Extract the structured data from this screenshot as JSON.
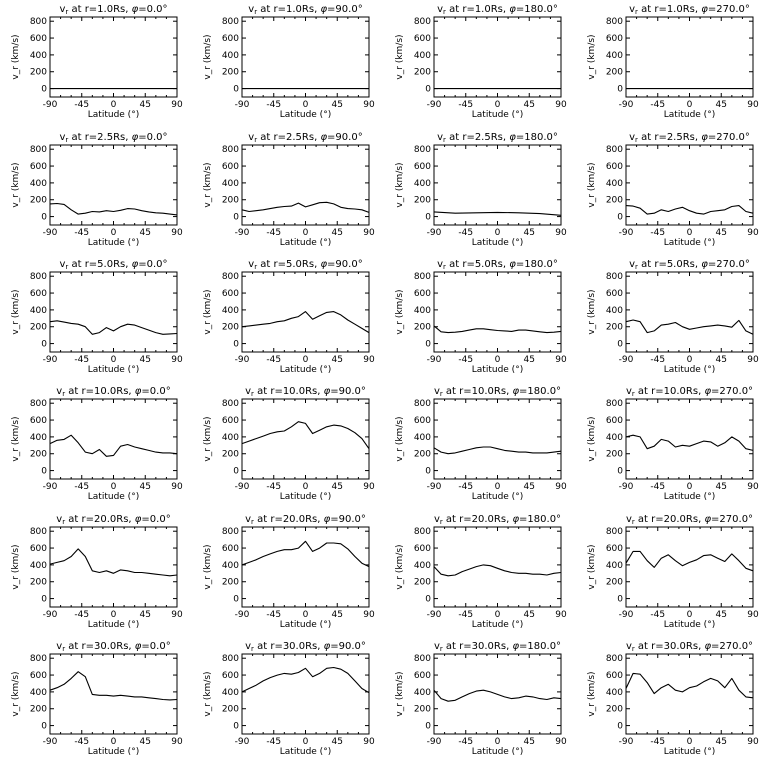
{
  "figure": {
    "ylabel": "v_r (km/s)",
    "xlabel": "Latitude (°)",
    "x_ticks": [
      "-90",
      "-45",
      "0",
      "45",
      "90"
    ],
    "y_ticks": [
      "0",
      "200",
      "400",
      "600",
      "800"
    ]
  },
  "chart_data": [
    {
      "type": "line",
      "title": "v_r at r=1.0Rs, φ=0.0°",
      "radius": "1.0",
      "phi": "0.0",
      "xlabel": "Latitude (°)",
      "ylabel": "v_r (km/s)",
      "xlim": [
        -90,
        90
      ],
      "ylim": [
        -100,
        850
      ],
      "x": [
        -90,
        90
      ],
      "y": [
        0,
        0
      ]
    },
    {
      "type": "line",
      "title": "v_r at r=1.0Rs, φ=90.0°",
      "radius": "1.0",
      "phi": "90.0",
      "xlabel": "Latitude (°)",
      "ylabel": "v_r (km/s)",
      "xlim": [
        -90,
        90
      ],
      "ylim": [
        -100,
        850
      ],
      "x": [
        -90,
        90
      ],
      "y": [
        0,
        0
      ]
    },
    {
      "type": "line",
      "title": "v_r at r=1.0Rs, φ=180.0°",
      "radius": "1.0",
      "phi": "180.0",
      "xlabel": "Latitude (°)",
      "ylabel": "v_r (km/s)",
      "xlim": [
        -90,
        90
      ],
      "ylim": [
        -100,
        850
      ],
      "x": [
        -90,
        90
      ],
      "y": [
        0,
        0
      ]
    },
    {
      "type": "line",
      "title": "v_r at r=1.0Rs, φ=270.0°",
      "radius": "1.0",
      "phi": "270.0",
      "xlabel": "Latitude (°)",
      "ylabel": "v_r (km/s)",
      "xlim": [
        -90,
        90
      ],
      "ylim": [
        -100,
        850
      ],
      "x": [
        -90,
        90
      ],
      "y": [
        0,
        0
      ]
    },
    {
      "type": "line",
      "title": "v_r at r=2.5Rs, φ=0.0°",
      "radius": "2.5",
      "phi": "0.0",
      "xlabel": "Latitude (°)",
      "ylabel": "v_r (km/s)",
      "xlim": [
        -90,
        90
      ],
      "ylim": [
        -100,
        850
      ],
      "x": [
        -90,
        -80,
        -70,
        -60,
        -50,
        -40,
        -30,
        -20,
        -10,
        0,
        10,
        20,
        30,
        40,
        50,
        60,
        70,
        80,
        90
      ],
      "y": [
        150,
        155,
        145,
        80,
        30,
        40,
        60,
        55,
        70,
        60,
        75,
        95,
        90,
        70,
        55,
        45,
        40,
        30,
        20
      ]
    },
    {
      "type": "line",
      "title": "v_r at r=2.5Rs, φ=90.0°",
      "radius": "2.5",
      "phi": "90.0",
      "xlabel": "Latitude (°)",
      "ylabel": "v_r (km/s)",
      "xlim": [
        -90,
        90
      ],
      "ylim": [
        -100,
        850
      ],
      "x": [
        -90,
        -80,
        -70,
        -60,
        -50,
        -40,
        -30,
        -20,
        -10,
        0,
        10,
        20,
        30,
        40,
        50,
        60,
        70,
        80,
        90
      ],
      "y": [
        80,
        60,
        70,
        80,
        95,
        110,
        120,
        125,
        160,
        115,
        140,
        165,
        170,
        150,
        110,
        95,
        90,
        80,
        50
      ]
    },
    {
      "type": "line",
      "title": "v_r at r=2.5Rs, φ=180.0°",
      "radius": "2.5",
      "phi": "180.0",
      "xlabel": "Latitude (°)",
      "ylabel": "v_r (km/s)",
      "xlim": [
        -90,
        90
      ],
      "ylim": [
        -100,
        850
      ],
      "x": [
        -90,
        -60,
        -30,
        0,
        30,
        60,
        90
      ],
      "y": [
        55,
        40,
        45,
        50,
        45,
        35,
        15
      ]
    },
    {
      "type": "line",
      "title": "v_r at r=2.5Rs, φ=270.0°",
      "radius": "2.5",
      "phi": "270.0",
      "xlabel": "Latitude (°)",
      "ylabel": "v_r (km/s)",
      "xlim": [
        -90,
        90
      ],
      "ylim": [
        -100,
        850
      ],
      "x": [
        -90,
        -80,
        -70,
        -60,
        -50,
        -40,
        -30,
        -20,
        -10,
        0,
        10,
        20,
        30,
        40,
        50,
        60,
        70,
        80,
        90
      ],
      "y": [
        130,
        125,
        100,
        30,
        40,
        80,
        60,
        90,
        110,
        70,
        40,
        30,
        60,
        70,
        80,
        120,
        130,
        60,
        40
      ]
    },
    {
      "type": "line",
      "title": "v_r at r=5.0Rs, φ=0.0°",
      "radius": "5.0",
      "phi": "0.0",
      "xlabel": "Latitude (°)",
      "ylabel": "v_r (km/s)",
      "xlim": [
        -90,
        90
      ],
      "ylim": [
        -100,
        850
      ],
      "x": [
        -90,
        -80,
        -70,
        -60,
        -50,
        -40,
        -30,
        -20,
        -10,
        0,
        10,
        20,
        30,
        40,
        50,
        60,
        70,
        80,
        90
      ],
      "y": [
        260,
        270,
        255,
        240,
        230,
        200,
        110,
        130,
        190,
        150,
        200,
        230,
        220,
        190,
        160,
        130,
        110,
        115,
        120
      ]
    },
    {
      "type": "line",
      "title": "v_r at r=5.0Rs, φ=90.0°",
      "radius": "5.0",
      "phi": "90.0",
      "xlabel": "Latitude (°)",
      "ylabel": "v_r (km/s)",
      "xlim": [
        -90,
        90
      ],
      "ylim": [
        -100,
        850
      ],
      "x": [
        -90,
        -80,
        -70,
        -60,
        -50,
        -40,
        -30,
        -20,
        -10,
        0,
        10,
        20,
        30,
        40,
        50,
        60,
        70,
        80,
        90
      ],
      "y": [
        200,
        210,
        220,
        230,
        240,
        260,
        270,
        300,
        320,
        380,
        290,
        330,
        370,
        380,
        340,
        280,
        230,
        180,
        130
      ]
    },
    {
      "type": "line",
      "title": "v_r at r=5.0Rs, φ=180.0°",
      "radius": "5.0",
      "phi": "180.0",
      "xlabel": "Latitude (°)",
      "ylabel": "v_r (km/s)",
      "xlim": [
        -90,
        90
      ],
      "ylim": [
        -100,
        850
      ],
      "x": [
        -90,
        -80,
        -70,
        -60,
        -50,
        -40,
        -30,
        -20,
        -10,
        0,
        10,
        20,
        30,
        40,
        50,
        60,
        70,
        80,
        90
      ],
      "y": [
        210,
        140,
        130,
        135,
        145,
        160,
        175,
        175,
        165,
        155,
        150,
        145,
        160,
        160,
        150,
        140,
        130,
        135,
        145
      ]
    },
    {
      "type": "line",
      "title": "v_r at r=5.0Rs, φ=270.0°",
      "radius": "5.0",
      "phi": "270.0",
      "xlabel": "Latitude (°)",
      "ylabel": "v_r (km/s)",
      "xlim": [
        -90,
        90
      ],
      "ylim": [
        -100,
        850
      ],
      "x": [
        -90,
        -80,
        -70,
        -60,
        -50,
        -40,
        -30,
        -20,
        -10,
        0,
        10,
        20,
        30,
        40,
        50,
        60,
        70,
        80,
        90
      ],
      "y": [
        260,
        280,
        260,
        130,
        150,
        220,
        230,
        250,
        200,
        170,
        185,
        200,
        210,
        220,
        210,
        195,
        275,
        150,
        110
      ]
    },
    {
      "type": "line",
      "title": "v_r at r=10.0Rs, φ=0.0°",
      "radius": "10.0",
      "phi": "0.0",
      "xlabel": "Latitude (°)",
      "ylabel": "v_r (km/s)",
      "xlim": [
        -90,
        90
      ],
      "ylim": [
        -100,
        850
      ],
      "x": [
        -90,
        -80,
        -70,
        -60,
        -50,
        -40,
        -30,
        -20,
        -10,
        0,
        10,
        20,
        30,
        40,
        50,
        60,
        70,
        80,
        90
      ],
      "y": [
        320,
        360,
        370,
        420,
        330,
        220,
        200,
        250,
        170,
        180,
        290,
        310,
        280,
        260,
        240,
        220,
        210,
        210,
        200
      ]
    },
    {
      "type": "line",
      "title": "v_r at r=10.0Rs, φ=90.0°",
      "radius": "10.0",
      "phi": "90.0",
      "xlabel": "Latitude (°)",
      "ylabel": "v_r (km/s)",
      "xlim": [
        -90,
        90
      ],
      "ylim": [
        -100,
        850
      ],
      "x": [
        -90,
        -80,
        -70,
        -60,
        -50,
        -40,
        -30,
        -20,
        -10,
        0,
        10,
        20,
        30,
        40,
        50,
        60,
        70,
        80,
        90
      ],
      "y": [
        320,
        350,
        380,
        410,
        440,
        460,
        470,
        520,
        580,
        560,
        440,
        480,
        520,
        540,
        530,
        500,
        450,
        380,
        260
      ]
    },
    {
      "type": "line",
      "title": "v_r at r=10.0Rs, φ=180.0°",
      "radius": "10.0",
      "phi": "180.0",
      "xlabel": "Latitude (°)",
      "ylabel": "v_r (km/s)",
      "xlim": [
        -90,
        90
      ],
      "ylim": [
        -100,
        850
      ],
      "x": [
        -90,
        -80,
        -70,
        -60,
        -50,
        -40,
        -30,
        -20,
        -10,
        0,
        10,
        20,
        30,
        40,
        50,
        60,
        70,
        80,
        90
      ],
      "y": [
        270,
        220,
        200,
        210,
        230,
        250,
        270,
        280,
        280,
        260,
        240,
        230,
        220,
        220,
        210,
        210,
        210,
        220,
        230
      ]
    },
    {
      "type": "line",
      "title": "v_r at r=10.0Rs, φ=270.0°",
      "radius": "10.0",
      "phi": "270.0",
      "xlabel": "Latitude (°)",
      "ylabel": "v_r (km/s)",
      "xlim": [
        -90,
        90
      ],
      "ylim": [
        -100,
        850
      ],
      "x": [
        -90,
        -80,
        -70,
        -60,
        -50,
        -40,
        -30,
        -20,
        -10,
        0,
        10,
        20,
        30,
        40,
        50,
        60,
        70,
        80,
        90
      ],
      "y": [
        400,
        420,
        400,
        260,
        290,
        370,
        350,
        280,
        300,
        290,
        320,
        350,
        340,
        290,
        330,
        400,
        350,
        260,
        240
      ]
    },
    {
      "type": "line",
      "title": "v_r at r=20.0Rs, φ=0.0°",
      "radius": "20.0",
      "phi": "0.0",
      "xlabel": "Latitude (°)",
      "ylabel": "v_r (km/s)",
      "xlim": [
        -90,
        90
      ],
      "ylim": [
        -100,
        850
      ],
      "x": [
        -90,
        -80,
        -70,
        -60,
        -50,
        -40,
        -30,
        -20,
        -10,
        0,
        10,
        20,
        30,
        40,
        50,
        60,
        70,
        80,
        90
      ],
      "y": [
        410,
        430,
        450,
        500,
        590,
        500,
        330,
        310,
        330,
        300,
        340,
        330,
        310,
        310,
        300,
        290,
        280,
        270,
        280
      ]
    },
    {
      "type": "line",
      "title": "v_r at r=20.0Rs, φ=90.0°",
      "radius": "20.0",
      "phi": "90.0",
      "xlabel": "Latitude (°)",
      "ylabel": "v_r (km/s)",
      "xlim": [
        -90,
        90
      ],
      "ylim": [
        -100,
        850
      ],
      "x": [
        -90,
        -80,
        -70,
        -60,
        -50,
        -40,
        -30,
        -20,
        -10,
        0,
        10,
        20,
        30,
        40,
        50,
        60,
        70,
        80,
        90
      ],
      "y": [
        400,
        430,
        460,
        500,
        530,
        560,
        580,
        580,
        600,
        680,
        560,
        600,
        660,
        660,
        650,
        590,
        500,
        420,
        380
      ]
    },
    {
      "type": "line",
      "title": "v_r at r=20.0Rs, φ=180.0°",
      "radius": "20.0",
      "phi": "180.0",
      "xlabel": "Latitude (°)",
      "ylabel": "v_r (km/s)",
      "xlim": [
        -90,
        90
      ],
      "ylim": [
        -100,
        850
      ],
      "x": [
        -90,
        -80,
        -70,
        -60,
        -50,
        -40,
        -30,
        -20,
        -10,
        0,
        10,
        20,
        30,
        40,
        50,
        60,
        70,
        80,
        90
      ],
      "y": [
        380,
        290,
        270,
        280,
        320,
        350,
        380,
        400,
        390,
        360,
        330,
        310,
        300,
        300,
        290,
        290,
        280,
        300,
        310
      ]
    },
    {
      "type": "line",
      "title": "v_r at r=20.0Rs, φ=270.0°",
      "radius": "20.0",
      "phi": "270.0",
      "xlabel": "Latitude (°)",
      "ylabel": "v_r (km/s)",
      "xlim": [
        -90,
        90
      ],
      "ylim": [
        -100,
        850
      ],
      "x": [
        -90,
        -80,
        -70,
        -60,
        -50,
        -40,
        -30,
        -20,
        -10,
        0,
        10,
        20,
        30,
        40,
        50,
        60,
        70,
        80,
        90
      ],
      "y": [
        420,
        560,
        560,
        450,
        370,
        480,
        520,
        450,
        390,
        430,
        460,
        510,
        520,
        480,
        440,
        530,
        450,
        360,
        330
      ]
    },
    {
      "type": "line",
      "title": "v_r at r=30.0Rs, φ=0.0°",
      "radius": "30.0",
      "phi": "0.0",
      "xlabel": "Latitude (°)",
      "ylabel": "v_r (km/s)",
      "xlim": [
        -90,
        90
      ],
      "ylim": [
        -100,
        850
      ],
      "x": [
        -90,
        -80,
        -70,
        -60,
        -50,
        -40,
        -30,
        -20,
        -10,
        0,
        10,
        20,
        30,
        40,
        50,
        60,
        70,
        80,
        90
      ],
      "y": [
        420,
        450,
        490,
        560,
        640,
        580,
        370,
        360,
        360,
        350,
        360,
        350,
        340,
        340,
        330,
        320,
        310,
        305,
        310
      ]
    },
    {
      "type": "line",
      "title": "v_r at r=30.0Rs, φ=90.0°",
      "radius": "30.0",
      "phi": "90.0",
      "xlabel": "Latitude (°)",
      "ylabel": "v_r (km/s)",
      "xlim": [
        -90,
        90
      ],
      "ylim": [
        -100,
        850
      ],
      "x": [
        -90,
        -80,
        -70,
        -60,
        -50,
        -40,
        -30,
        -20,
        -10,
        0,
        10,
        20,
        30,
        40,
        50,
        60,
        70,
        80,
        90
      ],
      "y": [
        400,
        440,
        480,
        530,
        570,
        600,
        620,
        610,
        630,
        680,
        580,
        620,
        680,
        690,
        670,
        620,
        530,
        440,
        390
      ]
    },
    {
      "type": "line",
      "title": "v_r at r=30.0Rs, φ=180.0°",
      "radius": "30.0",
      "phi": "180.0",
      "xlabel": "Latitude (°)",
      "ylabel": "v_r (km/s)",
      "xlim": [
        -90,
        90
      ],
      "ylim": [
        -100,
        850
      ],
      "x": [
        -90,
        -80,
        -70,
        -60,
        -50,
        -40,
        -30,
        -20,
        -10,
        0,
        10,
        20,
        30,
        40,
        50,
        60,
        70,
        80,
        90
      ],
      "y": [
        420,
        320,
        290,
        300,
        340,
        380,
        410,
        420,
        400,
        370,
        340,
        320,
        330,
        350,
        340,
        320,
        310,
        330,
        320
      ]
    },
    {
      "type": "line",
      "title": "v_r at r=30.0Rs, φ=270.0°",
      "radius": "30.0",
      "phi": "270.0",
      "xlabel": "Latitude (°)",
      "ylabel": "v_r (km/s)",
      "xlim": [
        -90,
        90
      ],
      "ylim": [
        -100,
        850
      ],
      "x": [
        -90,
        -80,
        -70,
        -60,
        -50,
        -40,
        -30,
        -20,
        -10,
        0,
        10,
        20,
        30,
        40,
        50,
        60,
        70,
        80,
        90
      ],
      "y": [
        440,
        620,
        610,
        510,
        380,
        450,
        490,
        420,
        400,
        450,
        470,
        520,
        560,
        530,
        450,
        560,
        420,
        340,
        330
      ]
    }
  ]
}
